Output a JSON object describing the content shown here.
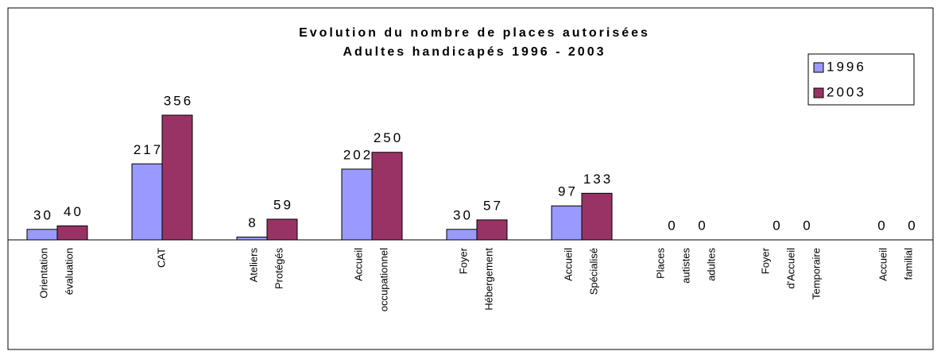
{
  "chart_data": {
    "type": "bar",
    "title": [
      "Evolution du nombre de places autorisées",
      "Adultes handicapés 1996 - 2003"
    ],
    "categories": [
      [
        "Orientation",
        "évaluation"
      ],
      [
        "CAT"
      ],
      [
        "Ateliers",
        "Protégés"
      ],
      [
        "Accueil",
        "occupationnel"
      ],
      [
        "Foyer",
        "Hébergement"
      ],
      [
        "Accueil",
        "Spécialisé"
      ],
      [
        "Places",
        "autistes",
        "adultes"
      ],
      [
        "Foyer",
        "d'Accueil",
        "Temporaire"
      ],
      [
        "Accueil",
        "familial"
      ]
    ],
    "series": [
      {
        "name": "1996",
        "color": "#9999ff",
        "values": [
          30,
          217,
          8,
          202,
          30,
          97,
          0,
          0,
          0
        ]
      },
      {
        "name": "2003",
        "color": "#993366",
        "values": [
          40,
          356,
          59,
          250,
          57,
          133,
          0,
          0,
          0
        ]
      }
    ]
  }
}
